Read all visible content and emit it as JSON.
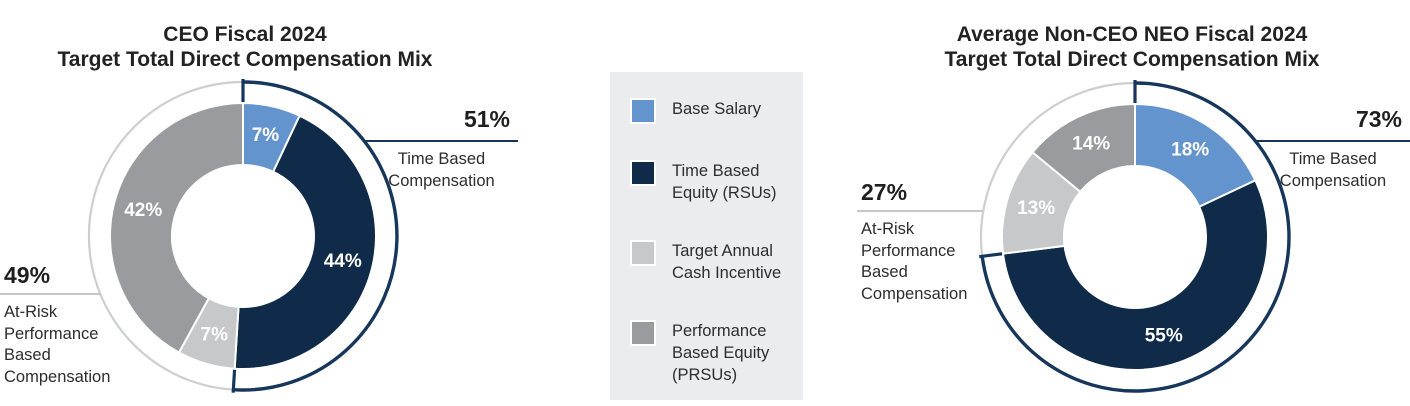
{
  "colors": {
    "blue": "#6494cd",
    "navy": "#0f2b49",
    "light_gray": "#c7c8ca",
    "mid_gray": "#9a9b9e",
    "ring_navy": "#16365c",
    "ring_gray": "#cdced0",
    "leader_gray": "#c6c7c9",
    "legend_bg": "#ebeced",
    "text": "#2d2d2d"
  },
  "legend": {
    "items": [
      {
        "name": "base-salary",
        "label": "Base Salary",
        "color": "#6494cd"
      },
      {
        "name": "time-based-equity-rsus",
        "label": "Time Based\nEquity (RSUs)",
        "color": "#0f2b49"
      },
      {
        "name": "target-annual-cash-incentive",
        "label": "Target Annual\nCash Incentive",
        "color": "#c7c8ca"
      },
      {
        "name": "performance-based-equity-prsus",
        "label": "Performance\nBased Equity\n(PRSUs)",
        "color": "#9a9b9e"
      }
    ]
  },
  "chart_data": [
    {
      "type": "pie",
      "variant": "donut",
      "title": "CEO Fiscal 2024 Target Total Direct Compensation Mix",
      "title_line1": "CEO Fiscal 2024",
      "title_line2": "Target Total Direct Compensation Mix",
      "categories": [
        "Base Salary",
        "Time Based Equity (RSUs)",
        "Target Annual Cash Incentive",
        "Performance Based Equity (PRSUs)"
      ],
      "values": [
        7,
        44,
        7,
        42
      ],
      "slices": [
        {
          "label": "Base Salary",
          "value": 7,
          "display": "7%",
          "color": "#6494cd"
        },
        {
          "label": "Time Based Equity (RSUs)",
          "value": 44,
          "display": "44%",
          "color": "#0f2b49"
        },
        {
          "label": "Target Annual Cash Incentive",
          "value": 7,
          "display": "7%",
          "color": "#c7c8ca"
        },
        {
          "label": "Performance Based Equity (PRSUs)",
          "value": 42,
          "display": "42%",
          "color": "#9a9b9e"
        }
      ],
      "ring": {
        "navy_pct": 51,
        "gray_pct": 49
      },
      "callouts": {
        "right": {
          "pct": "51%",
          "label": "Time Based\nCompensation"
        },
        "left": {
          "pct": "49%",
          "label": "At-Risk\nPerformance\nBased\nCompensation"
        }
      }
    },
    {
      "type": "pie",
      "variant": "donut",
      "title": "Average Non-CEO NEO Fiscal 2024 Target Total Direct Compensation Mix",
      "title_line1": "Average Non-CEO NEO Fiscal 2024",
      "title_line2": "Target Total Direct Compensation Mix",
      "categories": [
        "Base Salary",
        "Time Based Equity (RSUs)",
        "Target Annual Cash Incentive",
        "Performance Based Equity (PRSUs)"
      ],
      "values": [
        18,
        55,
        13,
        14
      ],
      "slices": [
        {
          "label": "Base Salary",
          "value": 18,
          "display": "18%",
          "color": "#6494cd"
        },
        {
          "label": "Time Based Equity (RSUs)",
          "value": 55,
          "display": "55%",
          "color": "#0f2b49"
        },
        {
          "label": "Target Annual Cash Incentive",
          "value": 13,
          "display": "13%",
          "color": "#c7c8ca"
        },
        {
          "label": "Performance Based Equity (PRSUs)",
          "value": 14,
          "display": "14%",
          "color": "#9a9b9e"
        }
      ],
      "ring": {
        "navy_pct": 73,
        "gray_pct": 27
      },
      "callouts": {
        "right": {
          "pct": "73%",
          "label": "Time Based\nCompensation"
        },
        "left": {
          "pct": "27%",
          "label": "At-Risk\nPerformance\nBased\nCompensation"
        }
      }
    }
  ]
}
